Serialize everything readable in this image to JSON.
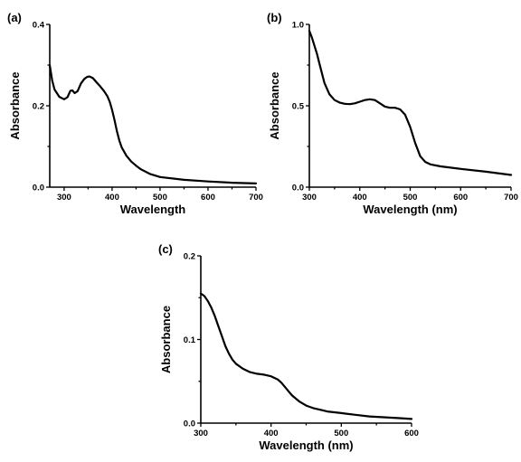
{
  "chart_data": [
    {
      "type": "line",
      "panel_label": "(a)",
      "xlabel": "Wavelength",
      "ylabel": "Absorbance",
      "xlim": [
        270,
        700
      ],
      "ylim": [
        0.0,
        0.4
      ],
      "xticks": [
        300,
        400,
        500,
        600,
        700
      ],
      "xtick_labels": [
        "300",
        "400",
        "500",
        "600",
        "700"
      ],
      "yticks": [
        0.0,
        0.2,
        0.4
      ],
      "ytick_labels": [
        "0.0",
        "0.2",
        "0.4"
      ],
      "grid": false,
      "series": [
        {
          "x": [
            270,
            275,
            280,
            290,
            300,
            307,
            313,
            317,
            322,
            328,
            335,
            342,
            348,
            353,
            360,
            368,
            375,
            382,
            390,
            395,
            400,
            405,
            410,
            415,
            420,
            430,
            440,
            450,
            460,
            480,
            500,
            550,
            600,
            650,
            700
          ],
          "y": [
            0.3,
            0.262,
            0.24,
            0.222,
            0.216,
            0.221,
            0.237,
            0.238,
            0.231,
            0.236,
            0.255,
            0.266,
            0.271,
            0.272,
            0.268,
            0.257,
            0.248,
            0.238,
            0.224,
            0.21,
            0.19,
            0.165,
            0.138,
            0.115,
            0.098,
            0.077,
            0.063,
            0.053,
            0.044,
            0.032,
            0.025,
            0.018,
            0.014,
            0.011,
            0.009
          ]
        }
      ]
    },
    {
      "type": "line",
      "panel_label": "(b)",
      "xlabel": "Wavelength (nm)",
      "ylabel": "Absorbance",
      "xlim": [
        300,
        700
      ],
      "ylim": [
        0.0,
        1.0
      ],
      "xticks": [
        300,
        400,
        500,
        600,
        700
      ],
      "xtick_labels": [
        "300",
        "400",
        "500",
        "600",
        "700"
      ],
      "yticks": [
        0.0,
        0.5,
        1.0
      ],
      "ytick_labels": [
        "0.0",
        "0.5",
        "1.0"
      ],
      "grid": false,
      "series": [
        {
          "x": [
            300,
            305,
            310,
            315,
            320,
            330,
            340,
            350,
            360,
            370,
            380,
            390,
            400,
            410,
            420,
            430,
            440,
            450,
            460,
            470,
            480,
            490,
            500,
            510,
            520,
            530,
            540,
            560,
            600,
            650,
            700
          ],
          "y": [
            0.96,
            0.92,
            0.87,
            0.82,
            0.76,
            0.64,
            0.57,
            0.535,
            0.52,
            0.512,
            0.51,
            0.515,
            0.525,
            0.535,
            0.54,
            0.535,
            0.515,
            0.495,
            0.488,
            0.488,
            0.478,
            0.445,
            0.37,
            0.27,
            0.19,
            0.155,
            0.14,
            0.128,
            0.112,
            0.095,
            0.075
          ]
        }
      ]
    },
    {
      "type": "line",
      "panel_label": "(c)",
      "xlabel": "Wavelength (nm)",
      "ylabel": "Absorbance",
      "xlim": [
        300,
        600
      ],
      "ylim": [
        0.0,
        0.2
      ],
      "xticks": [
        300,
        400,
        500,
        600
      ],
      "xtick_labels": [
        "300",
        "400",
        "500",
        "600"
      ],
      "yticks": [
        0.0,
        0.1,
        0.2
      ],
      "ytick_labels": [
        "0.0",
        "0.1",
        "0.2"
      ],
      "grid": false,
      "series": [
        {
          "x": [
            300,
            305,
            310,
            315,
            320,
            325,
            330,
            335,
            340,
            345,
            350,
            360,
            370,
            380,
            390,
            400,
            410,
            415,
            420,
            425,
            430,
            440,
            450,
            460,
            470,
            480,
            490,
            500,
            520,
            540,
            560,
            580,
            600
          ],
          "y": [
            0.155,
            0.152,
            0.146,
            0.138,
            0.128,
            0.116,
            0.104,
            0.092,
            0.083,
            0.076,
            0.071,
            0.065,
            0.061,
            0.059,
            0.058,
            0.056,
            0.052,
            0.048,
            0.043,
            0.038,
            0.033,
            0.026,
            0.021,
            0.018,
            0.016,
            0.014,
            0.013,
            0.012,
            0.01,
            0.008,
            0.007,
            0.006,
            0.005
          ]
        }
      ]
    }
  ]
}
